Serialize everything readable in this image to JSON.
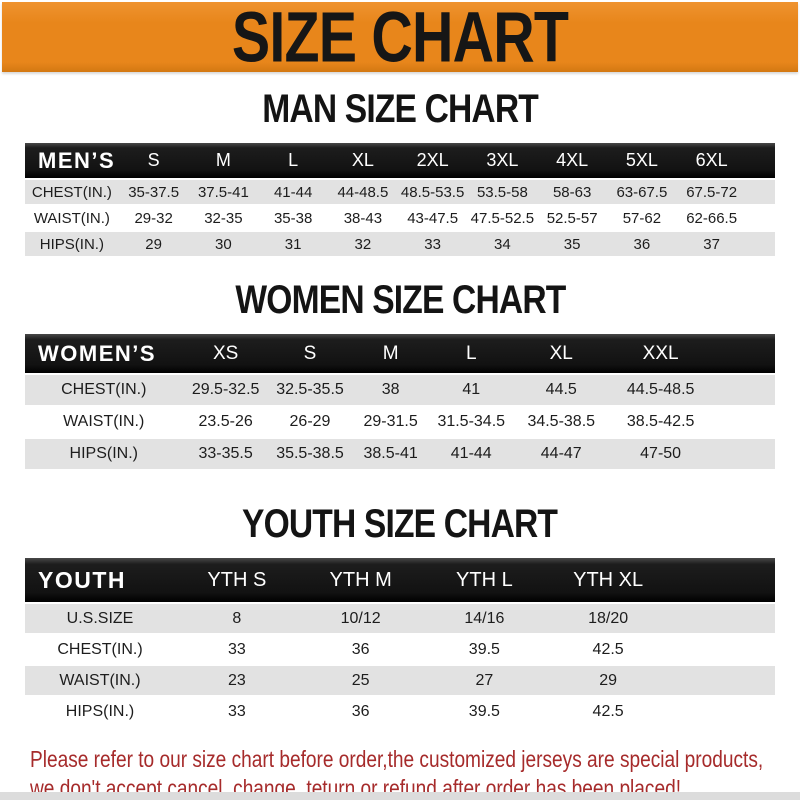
{
  "banner": {
    "title": "SIZE CHART"
  },
  "sections": [
    {
      "heading": "MAN SIZE CHART",
      "table": {
        "header": [
          "MEN’S",
          "S",
          "M",
          "L",
          "XL",
          "2XL",
          "3XL",
          "4XL",
          "5XL",
          "6XL"
        ],
        "rows": [
          {
            "label": "CHEST(IN.)",
            "values": [
              "35-37.5",
              "37.5-41",
              "41-44",
              "44-48.5",
              "48.5-53.5",
              "53.5-58",
              "58-63",
              "63-67.5",
              "67.5-72"
            ]
          },
          {
            "label": "WAIST(IN.)",
            "values": [
              "29-32",
              "32-35",
              "35-38",
              "38-43",
              "43-47.5",
              "47.5-52.5",
              "52.5-57",
              "57-62",
              "62-66.5"
            ]
          },
          {
            "label": "HIPS(IN.)",
            "values": [
              "29",
              "30",
              "31",
              "32",
              "33",
              "34",
              "35",
              "36",
              "37"
            ]
          }
        ]
      }
    },
    {
      "heading": "WOMEN SIZE CHART",
      "table": {
        "header": [
          "WOMEN’S",
          "XS",
          "S",
          "M",
          "L",
          "XL",
          "XXL"
        ],
        "rows": [
          {
            "label": "CHEST(IN.)",
            "values": [
              "29.5-32.5",
              "32.5-35.5",
              "38",
              "41",
              "44.5",
              "44.5-48.5"
            ]
          },
          {
            "label": "WAIST(IN.)",
            "values": [
              "23.5-26",
              "26-29",
              "29-31.5",
              "31.5-34.5",
              "34.5-38.5",
              "38.5-42.5"
            ]
          },
          {
            "label": "HIPS(IN.)",
            "values": [
              "33-35.5",
              "35.5-38.5",
              "38.5-41",
              "41-44",
              "44-47",
              "47-50"
            ]
          }
        ]
      }
    },
    {
      "heading": "YOUTH SIZE CHART",
      "table": {
        "header": [
          "YOUTH",
          "YTH S",
          "YTH M",
          "YTH L",
          "YTH XL"
        ],
        "rows": [
          {
            "label": "U.S.SIZE",
            "values": [
              "8",
              "10/12",
              "14/16",
              "18/20"
            ]
          },
          {
            "label": "CHEST(IN.)",
            "values": [
              "33",
              "36",
              "39.5",
              "42.5"
            ]
          },
          {
            "label": "WAIST(IN.)",
            "values": [
              "23",
              "25",
              "27",
              "29"
            ]
          },
          {
            "label": "HIPS(IN.)",
            "values": [
              "33",
              "36",
              "39.5",
              "42.5"
            ]
          }
        ]
      }
    }
  ],
  "footer": {
    "line1": "Please refer to our size chart before order,the customized jerseys are special products,",
    "line2": "we don't accept cancel, change, teturn or refund after order has been placed!"
  },
  "colors": {
    "banner_orange": "#e8861b",
    "header_black": "#141414",
    "row_gray": "#e2e2e2",
    "footer_red": "#a62b2b"
  }
}
